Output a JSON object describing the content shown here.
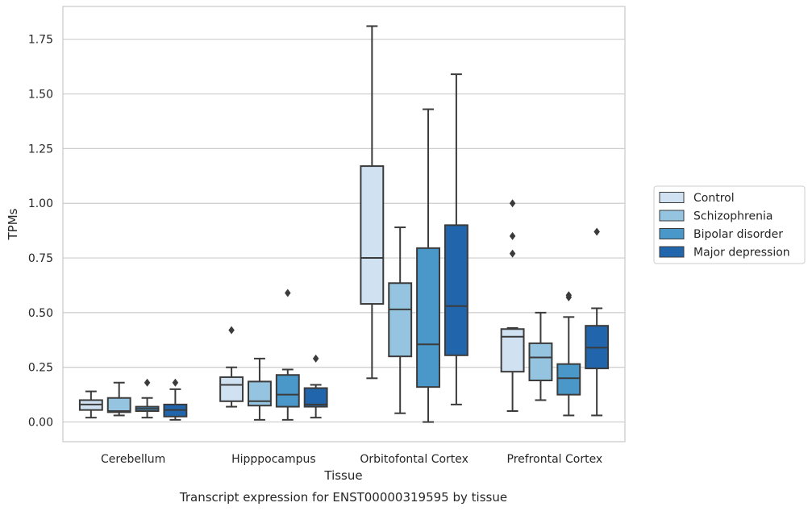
{
  "chart_data": {
    "type": "box",
    "xlabel": "Tissue",
    "ylabel": "TPMs",
    "caption": "Transcript expression for ENST00000319595 by tissue",
    "ylim": [
      -0.09,
      1.9
    ],
    "yticks": [
      0.0,
      0.25,
      0.5,
      0.75,
      1.0,
      1.25,
      1.5,
      1.75
    ],
    "ytick_labels": [
      "0.00",
      "0.25",
      "0.50",
      "0.75",
      "1.00",
      "1.25",
      "1.50",
      "1.75"
    ],
    "grid": "horizontal",
    "legend_position": "right",
    "categories": [
      "Cerebellum",
      "Hipppocampus",
      "Orbitofontal Cortex",
      "Prefrontal Cortex"
    ],
    "series": [
      {
        "name": "Control",
        "color": "#d0e1f2",
        "boxes": [
          {
            "min": 0.02,
            "q1": 0.055,
            "median": 0.08,
            "q3": 0.1,
            "max": 0.14,
            "outliers": []
          },
          {
            "min": 0.07,
            "q1": 0.095,
            "median": 0.17,
            "q3": 0.205,
            "max": 0.25,
            "outliers": [
              0.42
            ]
          },
          {
            "min": 0.2,
            "q1": 0.54,
            "median": 0.75,
            "q3": 1.17,
            "max": 1.81,
            "outliers": []
          },
          {
            "min": 0.05,
            "q1": 0.23,
            "median": 0.39,
            "q3": 0.425,
            "max": 0.43,
            "outliers": [
              0.77,
              0.85,
              1.0
            ]
          }
        ]
      },
      {
        "name": "Schizophrenia",
        "color": "#94c4df",
        "boxes": [
          {
            "min": 0.03,
            "q1": 0.045,
            "median": 0.05,
            "q3": 0.11,
            "max": 0.18,
            "outliers": []
          },
          {
            "min": 0.01,
            "q1": 0.075,
            "median": 0.095,
            "q3": 0.185,
            "max": 0.29,
            "outliers": []
          },
          {
            "min": 0.04,
            "q1": 0.3,
            "median": 0.515,
            "q3": 0.635,
            "max": 0.89,
            "outliers": []
          },
          {
            "min": 0.1,
            "q1": 0.19,
            "median": 0.295,
            "q3": 0.36,
            "max": 0.5,
            "outliers": []
          }
        ]
      },
      {
        "name": "Bipolar disorder",
        "color": "#4a98c9",
        "boxes": [
          {
            "min": 0.02,
            "q1": 0.05,
            "median": 0.06,
            "q3": 0.07,
            "max": 0.11,
            "outliers": [
              0.18
            ]
          },
          {
            "min": 0.01,
            "q1": 0.07,
            "median": 0.125,
            "q3": 0.215,
            "max": 0.24,
            "outliers": [
              0.59
            ]
          },
          {
            "min": 0.0,
            "q1": 0.16,
            "median": 0.355,
            "q3": 0.795,
            "max": 1.43,
            "outliers": []
          },
          {
            "min": 0.03,
            "q1": 0.125,
            "median": 0.2,
            "q3": 0.265,
            "max": 0.48,
            "outliers": [
              0.57,
              0.58
            ]
          }
        ]
      },
      {
        "name": "Major depression",
        "color": "#2166ac",
        "boxes": [
          {
            "min": 0.01,
            "q1": 0.025,
            "median": 0.055,
            "q3": 0.08,
            "max": 0.15,
            "outliers": [
              0.18
            ]
          },
          {
            "min": 0.02,
            "q1": 0.07,
            "median": 0.08,
            "q3": 0.155,
            "max": 0.17,
            "outliers": [
              0.29
            ]
          },
          {
            "min": 0.08,
            "q1": 0.305,
            "median": 0.53,
            "q3": 0.9,
            "max": 1.59,
            "outliers": []
          },
          {
            "min": 0.03,
            "q1": 0.245,
            "median": 0.34,
            "q3": 0.44,
            "max": 0.52,
            "outliers": [
              0.87
            ]
          }
        ]
      }
    ]
  }
}
